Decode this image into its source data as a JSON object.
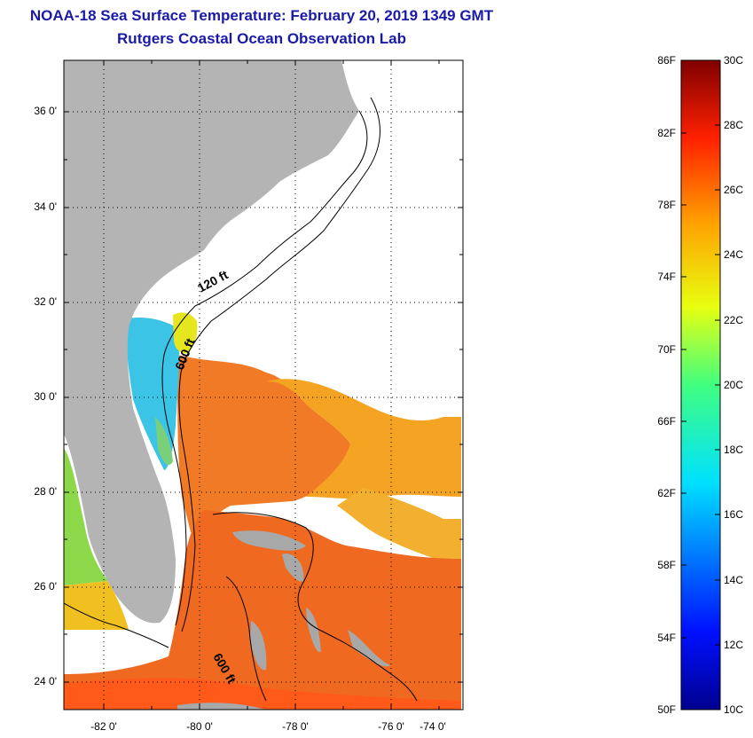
{
  "header": {
    "title": "NOAA-18 Sea Surface Temperature:  February 20, 2019 1349 GMT",
    "subtitle": "Rutgers Coastal Ocean Observation Lab"
  },
  "map": {
    "lat_labels": [
      "36 0'",
      "34 0'",
      "32 0'",
      "30 0'",
      "28 0'",
      "26 0'",
      "24 0'"
    ],
    "lon_labels": [
      "-82 0'",
      "-80 0'",
      "-78 0'",
      "-76 0'",
      "-74 0'"
    ],
    "contour_labels": {
      "shelf": "120 ft",
      "slope": "600 ft",
      "bahamas": "600 ft"
    },
    "colors": {
      "land": "#b4b4b4",
      "warm": "#f07020",
      "mid": "#f5a020",
      "cool": "#33c0e0",
      "cloud": "#ffffff"
    }
  },
  "colorbar": {
    "fahrenheit_labels": [
      "86F",
      "82F",
      "78F",
      "74F",
      "70F",
      "66F",
      "62F",
      "58F",
      "54F",
      "50F"
    ],
    "celsius_labels": [
      "30C",
      "28C",
      "26C",
      "24C",
      "22C",
      "20C",
      "18C",
      "16C",
      "14C",
      "12C",
      "10C"
    ],
    "range_f": [
      50,
      86
    ],
    "range_c": [
      10,
      30
    ]
  }
}
